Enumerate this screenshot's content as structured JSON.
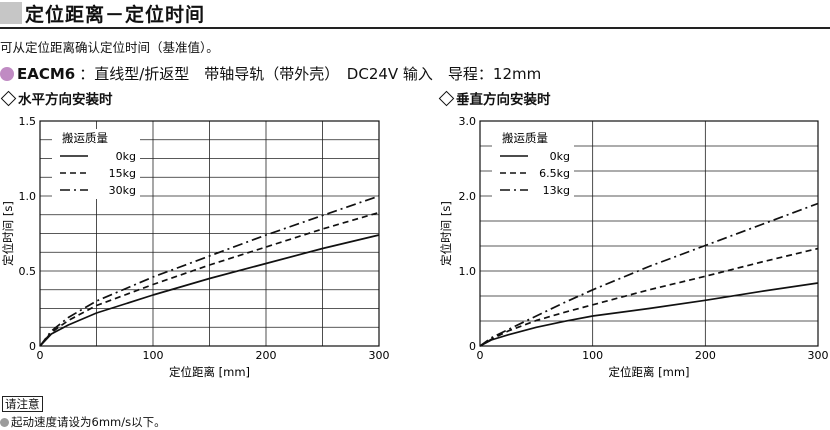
{
  "header": {
    "title": "定位距离－定位时间",
    "intro": "可从定位距离确认定位时间（基准值）。",
    "model": "EACM6",
    "model_spec": "：直线型/折返型　带轴导轨（带外壳）　DC24V 输入　导程：12mm"
  },
  "notice": {
    "label": "请注意",
    "text": "起动速度请设为6mm/s以下。"
  },
  "chart_data": [
    {
      "type": "line",
      "heading": "水平方向安装时",
      "xlabel": "定位距离 [mm]",
      "ylabel": "定位时间 [s]",
      "xlim": [
        0,
        300
      ],
      "ylim": [
        0,
        1.5
      ],
      "xticks": [
        0,
        100,
        200,
        300
      ],
      "yticks": [
        0,
        0.5,
        1.0,
        1.5
      ],
      "ytick_labels": [
        "0",
        "0.5",
        "1.0",
        "1.5"
      ],
      "grid": true,
      "legend_title": "搬运质量",
      "legend_position": "top-left",
      "series": [
        {
          "name": "0kg",
          "style": "solid",
          "x": [
            0,
            10,
            25,
            50,
            75,
            100,
            150,
            200,
            250,
            300
          ],
          "y": [
            0,
            0.08,
            0.14,
            0.22,
            0.28,
            0.34,
            0.45,
            0.55,
            0.65,
            0.74
          ]
        },
        {
          "name": "15kg",
          "style": "dashed",
          "x": [
            0,
            10,
            25,
            50,
            75,
            100,
            150,
            200,
            250,
            300
          ],
          "y": [
            0,
            0.09,
            0.17,
            0.27,
            0.34,
            0.41,
            0.54,
            0.66,
            0.78,
            0.89
          ]
        },
        {
          "name": "30kg",
          "style": "dashdot",
          "x": [
            0,
            10,
            25,
            50,
            75,
            100,
            150,
            200,
            250,
            300
          ],
          "y": [
            0,
            0.1,
            0.19,
            0.3,
            0.38,
            0.46,
            0.6,
            0.74,
            0.87,
            1.0
          ]
        }
      ]
    },
    {
      "type": "line",
      "heading": "垂直方向安装时",
      "xlabel": "定位距离 [mm]",
      "ylabel": "定位时间 [s]",
      "xlim": [
        0,
        300
      ],
      "ylim": [
        0,
        3.0
      ],
      "xticks": [
        0,
        100,
        200,
        300
      ],
      "yticks": [
        0,
        1.0,
        2.0,
        3.0
      ],
      "ytick_labels": [
        "0",
        "1.0",
        "2.0",
        "3.0"
      ],
      "grid": true,
      "legend_title": "搬运质量",
      "legend_position": "top-left",
      "series": [
        {
          "name": "0kg",
          "style": "solid",
          "x": [
            0,
            10,
            25,
            50,
            75,
            100,
            150,
            200,
            250,
            300
          ],
          "y": [
            0,
            0.08,
            0.15,
            0.25,
            0.33,
            0.4,
            0.5,
            0.61,
            0.73,
            0.84
          ]
        },
        {
          "name": "6.5kg",
          "style": "dashed",
          "x": [
            0,
            10,
            25,
            50,
            75,
            100,
            150,
            200,
            250,
            300
          ],
          "y": [
            0,
            0.09,
            0.2,
            0.34,
            0.45,
            0.55,
            0.75,
            0.93,
            1.12,
            1.3
          ]
        },
        {
          "name": "13kg",
          "style": "dashdot",
          "x": [
            0,
            10,
            25,
            50,
            75,
            100,
            150,
            200,
            250,
            300
          ],
          "y": [
            0,
            0.11,
            0.22,
            0.4,
            0.58,
            0.75,
            1.06,
            1.34,
            1.62,
            1.9
          ]
        }
      ]
    }
  ]
}
